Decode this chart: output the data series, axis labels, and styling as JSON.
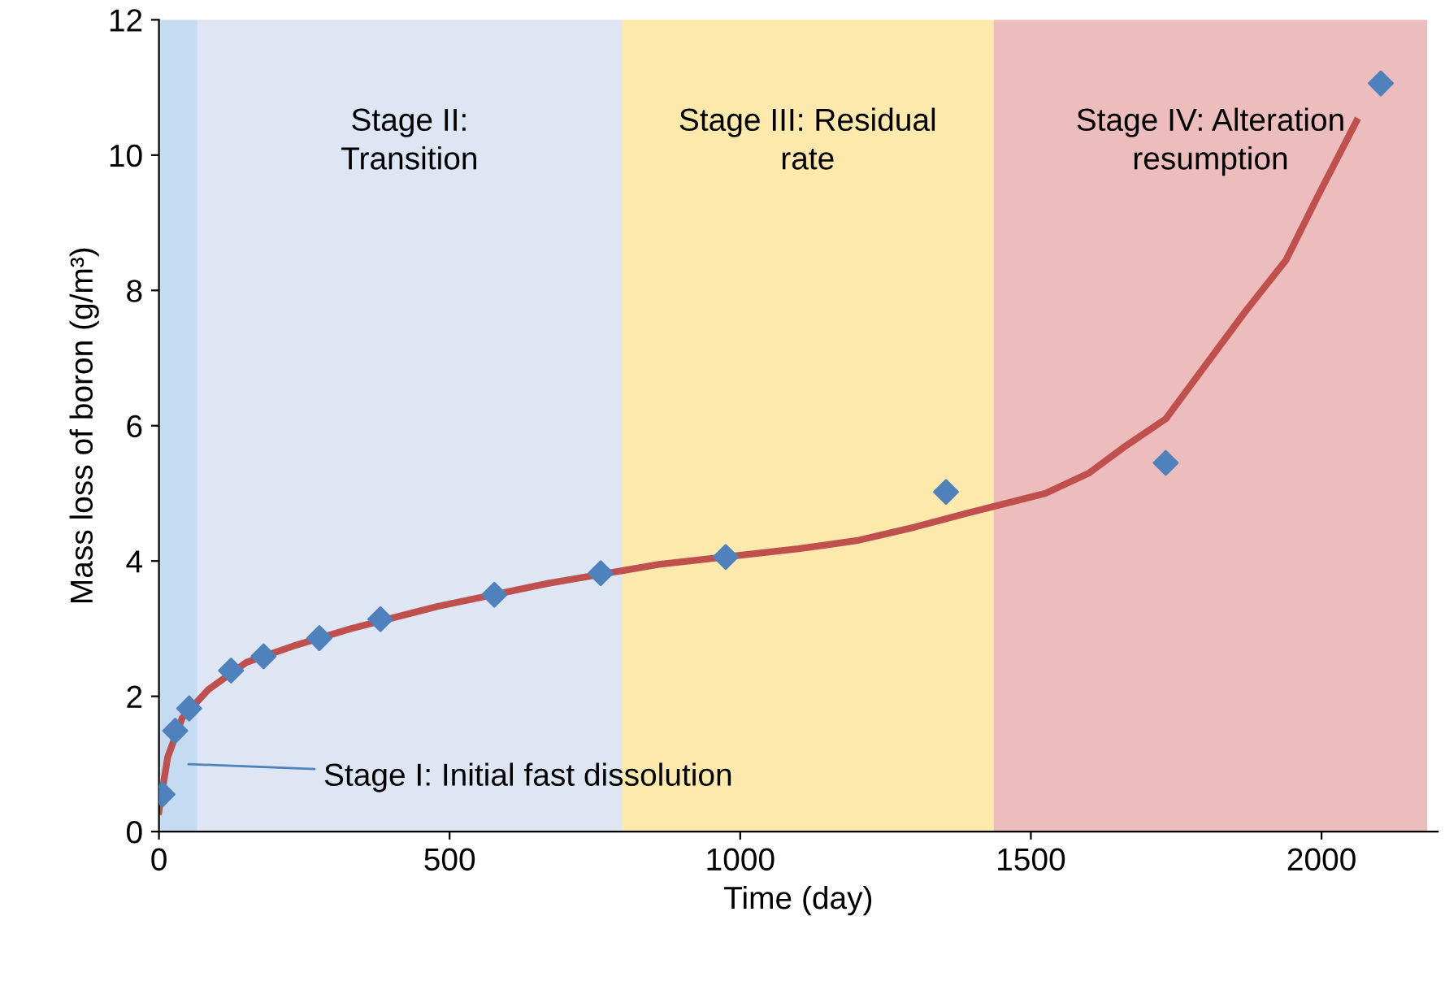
{
  "chart_data": {
    "type": "scatter",
    "xlabel": "Time (day)",
    "ylabel": "Mass loss of boron (g/m³)",
    "xlim": [
      0,
      2200
    ],
    "xticks": [
      0,
      500,
      1000,
      1500,
      2000
    ],
    "ylim": [
      0,
      12
    ],
    "yticks": [
      0,
      2,
      4,
      6,
      8,
      10,
      12
    ],
    "marker": "diamond",
    "series": [
      {
        "type": "line",
        "color": "#c0504d",
        "marker": "none",
        "x": [
          0,
          15,
          40,
          85,
          150,
          230,
          330,
          480,
          670,
          860,
          1100,
          1200,
          1300,
          1387,
          1525,
          1600,
          1663,
          1732,
          1801,
          1870,
          1939,
          1994,
          2060
        ],
        "values": [
          0.3,
          1.1,
          1.68,
          2.1,
          2.5,
          2.74,
          3.0,
          3.33,
          3.67,
          3.95,
          4.18,
          4.3,
          4.5,
          4.7,
          5.0,
          5.3,
          5.7,
          6.1,
          6.9,
          7.7,
          8.45,
          9.4,
          10.5
        ]
      },
      {
        "color": "#4f81bd",
        "x": [
          6,
          28,
          52,
          124,
          180,
          276,
          381,
          577,
          760,
          975,
          1354,
          1732,
          2102
        ],
        "values": [
          0.55,
          1.49,
          1.82,
          2.38,
          2.59,
          2.86,
          3.14,
          3.5,
          3.82,
          4.06,
          5.02,
          5.45,
          11.06
        ]
      }
    ],
    "bands": [
      {
        "axis": "x",
        "from": 0,
        "to": 66,
        "label": "Stage I: Initial fast dissolution",
        "color": "#8ab8e6"
      },
      {
        "axis": "x",
        "from": 66,
        "to": 796,
        "label": "Stage II:\nTransition",
        "color": "#bccde6"
      },
      {
        "axis": "x",
        "from": 796,
        "to": 1436,
        "label": "Stage III: Residual\nrate",
        "color": "#fdd35a"
      },
      {
        "axis": "x",
        "from": 1436,
        "to": 2182,
        "label": "Stage IV: Alteration\nresumption",
        "color": "#dc7a7a"
      }
    ]
  }
}
